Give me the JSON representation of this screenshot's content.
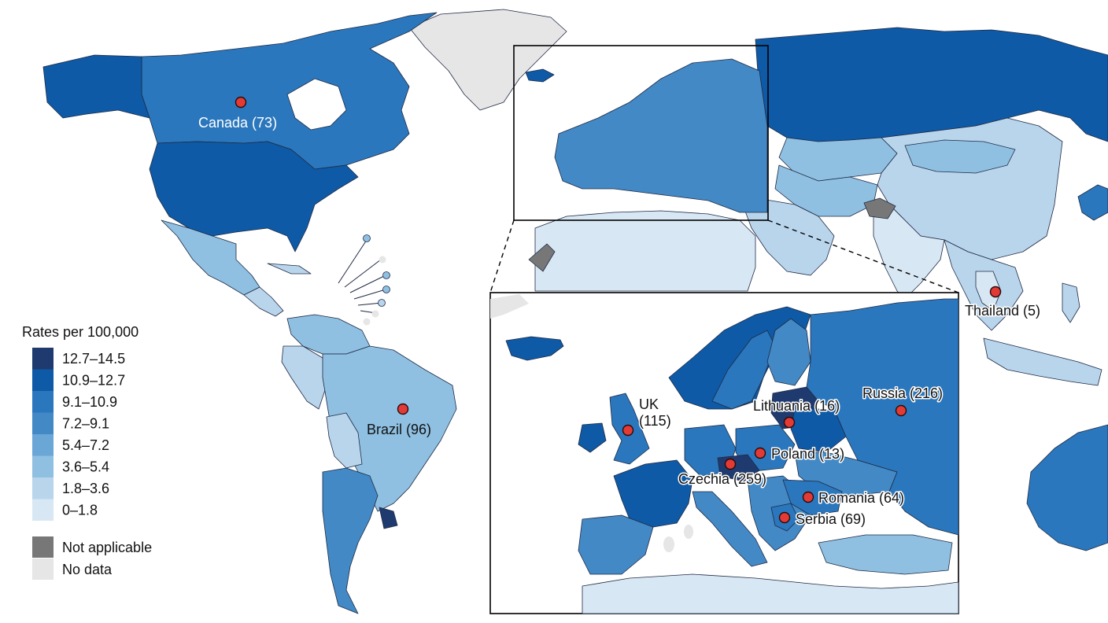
{
  "legend": {
    "title": "Rates per 100,000",
    "bins": [
      {
        "label": "12.7–14.5",
        "color": "#1f3a6e"
      },
      {
        "label": "10.9–12.7",
        "color": "#0e5aa6"
      },
      {
        "label": "9.1–10.9",
        "color": "#2a77bd"
      },
      {
        "label": "7.2–9.1",
        "color": "#4289c6"
      },
      {
        "label": "5.4–7.2",
        "color": "#6aa6d6"
      },
      {
        "label": "3.6–5.4",
        "color": "#8fc0e2"
      },
      {
        "label": "1.8–3.6",
        "color": "#b9d5ec"
      },
      {
        "label": "0–1.8",
        "color": "#d8e7f4"
      }
    ],
    "extra": [
      {
        "label": "Not applicable",
        "color": "#777777"
      },
      {
        "label": "No data",
        "color": "#e6e6e6"
      }
    ]
  },
  "world_labels": {
    "canada": "Canada (73)",
    "brazil": "Brazil (96)",
    "thailand": "Thailand (5)"
  },
  "inset_labels": {
    "uk_line1": "UK",
    "uk_line2": "(115)",
    "lithuania": "Lithuania (16)",
    "russia": "Russia (216)",
    "poland": "Poland (13)",
    "czechia": "Czechia (259)",
    "romania": "Romania (64)",
    "serbia": "Serbia (69)"
  }
}
